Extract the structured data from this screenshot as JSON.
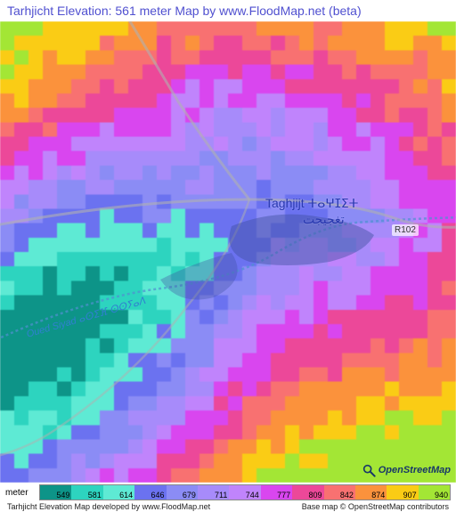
{
  "header": {
    "title": "Tarhjicht Elevation: 561 meter Map by www.FloodMap.net (beta)"
  },
  "map": {
    "place_name": "Taghjijt ⵜⴰⵖⵊⵉⵜ",
    "place_name_ar": "تغجيجت",
    "river_name": "Oued Siyad ⴰⵙⵉⴼ ⵙⵙⵢⴰⴷ",
    "road_name": "R102",
    "osm_attribution": "OpenStreetMap",
    "elevation_grid_cols": 32,
    "elevation_grid_rows": 32,
    "road_color": "#b0b0b0",
    "river_color": "#5090d0",
    "place_label_color": "#2838b0"
  },
  "legend": {
    "unit_label": "meter",
    "ticks": [
      {
        "color": "#0d9488",
        "value": "549"
      },
      {
        "color": "#2dd4bf",
        "value": "581"
      },
      {
        "color": "#5eead4",
        "value": "614"
      },
      {
        "color": "#6b72f0",
        "value": "646"
      },
      {
        "color": "#8b8cf5",
        "value": "679"
      },
      {
        "color": "#a78bfa",
        "value": "711"
      },
      {
        "color": "#c084fc",
        "value": "744"
      },
      {
        "color": "#d946ef",
        "value": "777"
      },
      {
        "color": "#ec4899",
        "value": "809"
      },
      {
        "color": "#f87171",
        "value": "842"
      },
      {
        "color": "#fb923c",
        "value": "874"
      },
      {
        "color": "#facc15",
        "value": "907"
      },
      {
        "color": "#a3e635",
        "value": "940"
      }
    ]
  },
  "footer": {
    "left": "Tarhjicht Elevation Map developed by www.FloodMap.net",
    "right": "Base map © OpenStreetMap contributors"
  },
  "elevation_palette": [
    "#0d9488",
    "#2dd4bf",
    "#5eead4",
    "#6b72f0",
    "#8b8cf5",
    "#a78bfa",
    "#c084fc",
    "#d946ef",
    "#ec4899",
    "#f87171",
    "#fb923c",
    "#facc15",
    "#a3e635"
  ]
}
